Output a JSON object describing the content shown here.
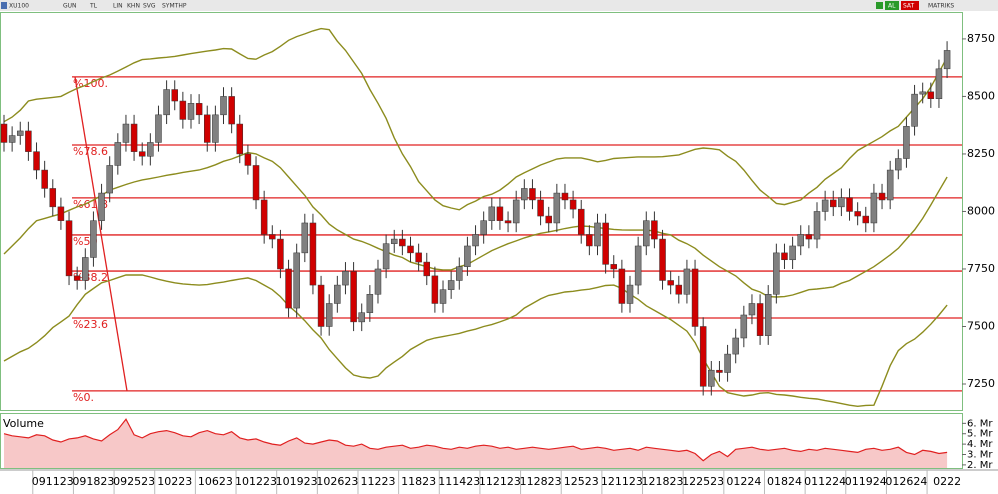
{
  "toolbar": {
    "symbol": "XU100",
    "buttons": [
      "GUN",
      "TL",
      "LIN",
      "KHN",
      "SVG",
      "SYMTHP"
    ],
    "right": [
      "AL",
      "SAT",
      "MATRIKS"
    ]
  },
  "chart_data": {
    "type": "candlestick",
    "up_color": "#808080",
    "down_color": "#d00000",
    "ylim": [
      7137,
      8867
    ],
    "yticks": [
      7250,
      7500,
      7750,
      8000,
      8250,
      8500,
      8750
    ],
    "xticks": [
      {
        "value": 6,
        "label": "091123"
      },
      {
        "value": 11,
        "label": "091823"
      },
      {
        "value": 16,
        "label": "092523"
      },
      {
        "value": 21,
        "label": "10223"
      },
      {
        "value": 26,
        "label": "10623"
      },
      {
        "value": 31,
        "label": "101223"
      },
      {
        "value": 36,
        "label": "101923"
      },
      {
        "value": 41,
        "label": "102623"
      },
      {
        "value": 46,
        "label": "11223"
      },
      {
        "value": 51,
        "label": "11823"
      },
      {
        "value": 56,
        "label": "111423"
      },
      {
        "value": 61,
        "label": "112123"
      },
      {
        "value": 66,
        "label": "112823"
      },
      {
        "value": 71,
        "label": "12523"
      },
      {
        "value": 76,
        "label": "121123"
      },
      {
        "value": 81,
        "label": "121823"
      },
      {
        "value": 86,
        "label": "122523"
      },
      {
        "value": 91,
        "label": "01224"
      },
      {
        "value": 96,
        "label": "01824"
      },
      {
        "value": 101,
        "label": "011224"
      },
      {
        "value": 106,
        "label": "011924"
      },
      {
        "value": 111,
        "label": "012624"
      },
      {
        "value": 116,
        "label": "0222"
      }
    ],
    "open": [
      8380,
      8300,
      8330,
      8350,
      8260,
      8180,
      8100,
      8020,
      7960,
      7720,
      7700,
      7800,
      7960,
      8080,
      8200,
      8300,
      8380,
      8260,
      8240,
      8300,
      8420,
      8530,
      8480,
      8400,
      8470,
      8420,
      8300,
      8420,
      8500,
      8380,
      8250,
      8200,
      8050,
      7900,
      7880,
      7750,
      7580,
      7820,
      7950,
      7680,
      7500,
      7600,
      7680,
      7740,
      7520,
      7560,
      7640,
      7750,
      7860,
      7880,
      7850,
      7820,
      7780,
      7720,
      7600,
      7660,
      7700,
      7760,
      7850,
      7900,
      7960,
      8020,
      7960,
      7950,
      8050,
      8100,
      8050,
      7980,
      7950,
      8080,
      8050,
      8010,
      7900,
      7850,
      7950,
      7770,
      7750,
      7600,
      7680,
      7850,
      7960,
      7880,
      7700,
      7680,
      7640,
      7750,
      7500,
      7240,
      7310,
      7300,
      7380,
      7450,
      7550,
      7600,
      7460,
      7640,
      7820,
      7790,
      7850,
      7900,
      7880,
      8000,
      8050,
      8020,
      8060,
      8000,
      7980,
      7950,
      8080,
      8050,
      8180,
      8230,
      8370,
      8510,
      8520,
      8490,
      8620
    ],
    "high": [
      8420,
      8370,
      8390,
      8390,
      8300,
      8220,
      8140,
      8060,
      8000,
      7760,
      7840,
      8000,
      8120,
      8240,
      8340,
      8420,
      8420,
      8300,
      8340,
      8460,
      8570,
      8570,
      8520,
      8510,
      8510,
      8460,
      8460,
      8540,
      8540,
      8420,
      8290,
      8240,
      8090,
      7940,
      7920,
      7790,
      7860,
      7990,
      7990,
      7720,
      7640,
      7720,
      7780,
      7780,
      7600,
      7680,
      7790,
      7900,
      7920,
      7920,
      7890,
      7860,
      7820,
      7760,
      7700,
      7740,
      7800,
      7890,
      7940,
      8000,
      8060,
      8060,
      8000,
      8090,
      8140,
      8140,
      8090,
      8020,
      8120,
      8120,
      8090,
      8050,
      7940,
      7990,
      7990,
      7810,
      7790,
      7720,
      7890,
      8000,
      8000,
      7920,
      7740,
      7720,
      7790,
      7790,
      7540,
      7350,
      7350,
      7420,
      7490,
      7590,
      7640,
      7640,
      7680,
      7860,
      7860,
      7890,
      7940,
      7940,
      8040,
      8090,
      8090,
      8100,
      8100,
      8040,
      8020,
      8120,
      8120,
      8220,
      8270,
      8410,
      8550,
      8560,
      8560,
      8660,
      8740
    ],
    "low": [
      8260,
      8260,
      8290,
      8220,
      8140,
      8060,
      7980,
      7920,
      7680,
      7660,
      7660,
      7760,
      7920,
      8040,
      8160,
      8260,
      8220,
      8200,
      8200,
      8260,
      8380,
      8440,
      8360,
      8360,
      8380,
      8260,
      8260,
      8380,
      8340,
      8210,
      8160,
      8010,
      7860,
      7840,
      7710,
      7540,
      7540,
      7780,
      7640,
      7460,
      7460,
      7560,
      7640,
      7480,
      7480,
      7520,
      7600,
      7710,
      7820,
      7810,
      7780,
      7740,
      7680,
      7560,
      7560,
      7620,
      7660,
      7720,
      7810,
      7860,
      7920,
      7920,
      7910,
      7910,
      8010,
      8010,
      7940,
      7910,
      7910,
      8010,
      7970,
      7860,
      7810,
      7810,
      7730,
      7710,
      7560,
      7560,
      7640,
      7810,
      7840,
      7660,
      7640,
      7600,
      7600,
      7460,
      7200,
      7200,
      7260,
      7260,
      7340,
      7410,
      7510,
      7420,
      7420,
      7600,
      7750,
      7750,
      7810,
      7840,
      7840,
      7960,
      7980,
      7980,
      7960,
      7940,
      7910,
      7910,
      8010,
      8010,
      8140,
      8190,
      8330,
      8470,
      8450,
      8450,
      8580
    ],
    "close": [
      8300,
      8330,
      8350,
      8260,
      8180,
      8100,
      8020,
      7960,
      7720,
      7700,
      7800,
      7960,
      8080,
      8200,
      8300,
      8380,
      8260,
      8240,
      8300,
      8420,
      8530,
      8480,
      8400,
      8470,
      8420,
      8300,
      8420,
      8500,
      8380,
      8250,
      8200,
      8050,
      7900,
      7880,
      7750,
      7580,
      7820,
      7950,
      7680,
      7500,
      7600,
      7680,
      7740,
      7520,
      7560,
      7640,
      7750,
      7860,
      7880,
      7850,
      7820,
      7780,
      7720,
      7600,
      7660,
      7700,
      7760,
      7850,
      7900,
      7960,
      8020,
      7960,
      7950,
      8050,
      8100,
      8050,
      7980,
      7950,
      8080,
      8050,
      8010,
      7900,
      7850,
      7950,
      7770,
      7750,
      7600,
      7680,
      7850,
      7960,
      7880,
      7700,
      7680,
      7640,
      7750,
      7500,
      7240,
      7310,
      7300,
      7380,
      7450,
      7550,
      7600,
      7460,
      7640,
      7820,
      7790,
      7850,
      7900,
      7880,
      8000,
      8050,
      8020,
      8060,
      8000,
      7980,
      7950,
      8080,
      8050,
      8180,
      8230,
      8370,
      8510,
      8520,
      8490,
      8620,
      8700
    ],
    "bands": {
      "color": "#8c8c1e",
      "upper": [
        8390,
        8410,
        8440,
        8480,
        8488,
        8492,
        8496,
        8500,
        8518,
        8535,
        8548,
        8565,
        8580,
        8593,
        8610,
        8628,
        8646,
        8660,
        8663,
        8667,
        8670,
        8674,
        8680,
        8686,
        8692,
        8697,
        8702,
        8708,
        8706,
        8685,
        8665,
        8662,
        8680,
        8695,
        8718,
        8744,
        8760,
        8772,
        8785,
        8795,
        8790,
        8740,
        8700,
        8650,
        8600,
        8530,
        8470,
        8405,
        8320,
        8250,
        8195,
        8130,
        8090,
        8050,
        8025,
        8015,
        8007,
        8030,
        8045,
        8065,
        8075,
        8093,
        8120,
        8150,
        8168,
        8185,
        8202,
        8215,
        8228,
        8233,
        8233,
        8233,
        8225,
        8216,
        8222,
        8230,
        8233,
        8235,
        8237,
        8237,
        8237,
        8238,
        8242,
        8246,
        8258,
        8270,
        8276,
        8273,
        8268,
        8240,
        8218,
        8180,
        8135,
        8093,
        8065,
        8035,
        8030,
        8040,
        8050,
        8080,
        8105,
        8140,
        8165,
        8190,
        8230,
        8265,
        8285,
        8305,
        8325,
        8350,
        8370,
        8410,
        8450,
        8490,
        8540,
        8605,
        8670
      ],
      "middle": [
        7815,
        7850,
        7885,
        7925,
        7960,
        7970,
        7980,
        7990,
        8005,
        8020,
        8032,
        8050,
        8070,
        8093,
        8105,
        8117,
        8128,
        8137,
        8143,
        8150,
        8157,
        8163,
        8170,
        8175,
        8180,
        8190,
        8203,
        8218,
        8228,
        8242,
        8256,
        8250,
        8233,
        8218,
        8190,
        8150,
        8110,
        8070,
        8020,
        7985,
        7945,
        7920,
        7900,
        7880,
        7870,
        7856,
        7840,
        7825,
        7810,
        7800,
        7780,
        7770,
        7760,
        7750,
        7746,
        7746,
        7760,
        7770,
        7790,
        7810,
        7830,
        7845,
        7860,
        7872,
        7885,
        7896,
        7905,
        7911,
        7918,
        7926,
        7932,
        7937,
        7935,
        7930,
        7926,
        7922,
        7920,
        7919,
        7919,
        7919,
        7915,
        7905,
        7898,
        7875,
        7860,
        7840,
        7810,
        7785,
        7760,
        7740,
        7720,
        7690,
        7662,
        7650,
        7630,
        7628,
        7630,
        7637,
        7648,
        7660,
        7663,
        7667,
        7672,
        7688,
        7700,
        7720,
        7740,
        7760,
        7785,
        7811,
        7840,
        7880,
        7920,
        7970,
        8028,
        8090,
        8150
      ],
      "lower": [
        7350,
        7370,
        7390,
        7405,
        7430,
        7460,
        7495,
        7520,
        7545,
        7595,
        7640,
        7665,
        7690,
        7700,
        7712,
        7724,
        7724,
        7724,
        7715,
        7705,
        7697,
        7690,
        7685,
        7682,
        7680,
        7682,
        7688,
        7693,
        7700,
        7706,
        7711,
        7700,
        7680,
        7660,
        7630,
        7590,
        7560,
        7525,
        7485,
        7450,
        7400,
        7360,
        7320,
        7289,
        7280,
        7276,
        7285,
        7320,
        7345,
        7370,
        7400,
        7420,
        7440,
        7450,
        7456,
        7463,
        7470,
        7480,
        7488,
        7500,
        7508,
        7520,
        7533,
        7550,
        7580,
        7600,
        7620,
        7635,
        7642,
        7650,
        7653,
        7658,
        7662,
        7670,
        7678,
        7680,
        7665,
        7640,
        7618,
        7590,
        7570,
        7550,
        7530,
        7505,
        7480,
        7430,
        7360,
        7300,
        7240,
        7212,
        7205,
        7198,
        7202,
        7210,
        7212,
        7205,
        7202,
        7198,
        7192,
        7188,
        7185,
        7178,
        7172,
        7165,
        7158,
        7153,
        7157,
        7158,
        7240,
        7330,
        7395,
        7425,
        7445,
        7475,
        7510,
        7550,
        7593
      ]
    },
    "fib_color": "#e02020",
    "fib_levels": [
      {
        "value": 8585,
        "label": "%100."
      },
      {
        "value": 8289,
        "label": "%78.6"
      },
      {
        "value": 8059,
        "label": "%61.8"
      },
      {
        "value": 7898,
        "label": "%50"
      },
      {
        "value": 7741,
        "label": "%38.2"
      },
      {
        "value": 7537,
        "label": "%23.6"
      },
      {
        "value": 7220,
        "label": "%0."
      }
    ],
    "volume": {
      "name": "Volume",
      "color": "#e02020",
      "fill": "#f7c8c8",
      "ylim": [
        1.7,
        6.9
      ],
      "yticks": [
        {
          "value": 2,
          "label": "2. Mr"
        },
        {
          "value": 3,
          "label": "3. Mr"
        },
        {
          "value": 4,
          "label": "4. Mr"
        },
        {
          "value": 5,
          "label": "5. Mr"
        },
        {
          "value": 6,
          "label": "6. Mr"
        }
      ],
      "values": [
        5.0,
        4.8,
        4.7,
        4.6,
        4.9,
        4.8,
        4.4,
        4.2,
        4.5,
        4.6,
        4.8,
        4.5,
        4.3,
        4.9,
        5.4,
        6.4,
        4.9,
        4.6,
        5.0,
        5.2,
        5.3,
        5.1,
        4.8,
        4.7,
        5.1,
        5.3,
        5.0,
        4.9,
        5.2,
        4.6,
        4.4,
        4.5,
        4.2,
        4.0,
        3.9,
        4.3,
        4.6,
        4.1,
        4.0,
        4.2,
        4.4,
        4.3,
        3.9,
        3.8,
        4.0,
        3.6,
        3.5,
        3.7,
        3.8,
        3.9,
        3.6,
        3.7,
        3.9,
        3.8,
        3.6,
        3.5,
        3.7,
        3.6,
        3.8,
        3.9,
        3.8,
        3.6,
        3.7,
        3.5,
        3.6,
        3.7,
        3.6,
        3.5,
        3.6,
        3.7,
        3.8,
        3.5,
        3.6,
        3.7,
        3.6,
        3.4,
        3.5,
        3.6,
        3.4,
        3.7,
        3.6,
        3.5,
        3.4,
        3.3,
        3.4,
        3.1,
        2.4,
        3.0,
        3.3,
        2.8,
        3.5,
        3.6,
        3.7,
        3.5,
        3.4,
        3.5,
        3.6,
        3.4,
        3.3,
        3.5,
        3.4,
        3.6,
        3.5,
        3.4,
        3.3,
        3.2,
        3.5,
        3.6,
        3.4,
        3.5,
        3.7,
        3.2,
        3.0,
        3.4,
        3.3,
        3.1,
        3.2
      ]
    }
  }
}
